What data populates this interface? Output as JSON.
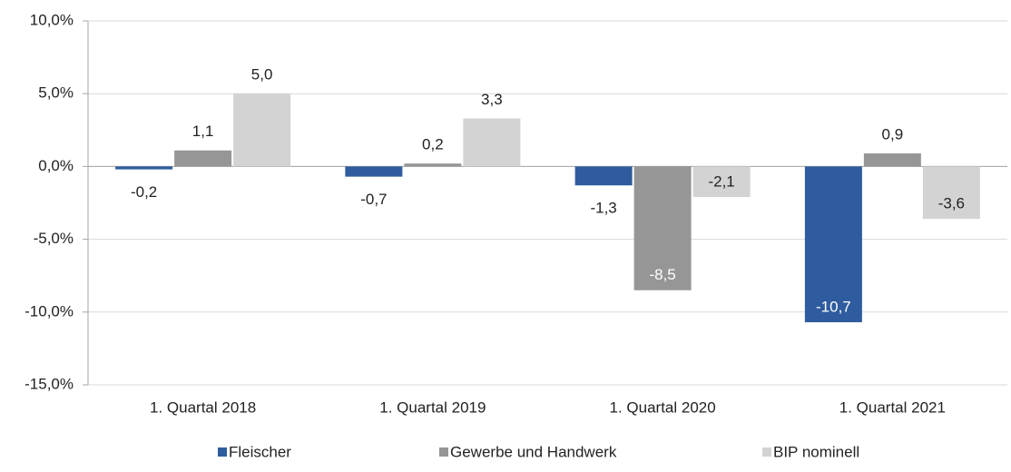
{
  "chart_data": {
    "type": "bar",
    "categories": [
      "1. Quartal 2018",
      "1. Quartal 2019",
      "1. Quartal 2020",
      "1. Quartal 2021"
    ],
    "series": [
      {
        "name": "Fleischer",
        "color": "#2e5c9e",
        "values": [
          -0.2,
          -0.7,
          -1.3,
          -10.7
        ],
        "value_labels": [
          "-0,2",
          "-0,7",
          "-1,3",
          "-10,7"
        ]
      },
      {
        "name": "Gewerbe und Handwerk",
        "color": "#969696",
        "values": [
          1.1,
          0.2,
          -8.5,
          0.9
        ],
        "value_labels": [
          "1,1",
          "0,2",
          "-8,5",
          "0,9"
        ]
      },
      {
        "name": "BIP nominell",
        "color": "#d3d3d3",
        "values": [
          5.0,
          3.3,
          -2.1,
          -3.6
        ],
        "value_labels": [
          "5,0",
          "3,3",
          "-2,1",
          "-3,6"
        ]
      }
    ],
    "ylim": [
      -15,
      10
    ],
    "yticks": [
      {
        "value": -15,
        "label": "-15,0%"
      },
      {
        "value": -10,
        "label": "-10,0%"
      },
      {
        "value": -5,
        "label": "-5,0%"
      },
      {
        "value": 0,
        "label": "0,0%"
      },
      {
        "value": 5,
        "label": "5,0%"
      },
      {
        "value": 10,
        "label": "10,0%"
      }
    ],
    "grid": true,
    "legend": "bottom"
  }
}
